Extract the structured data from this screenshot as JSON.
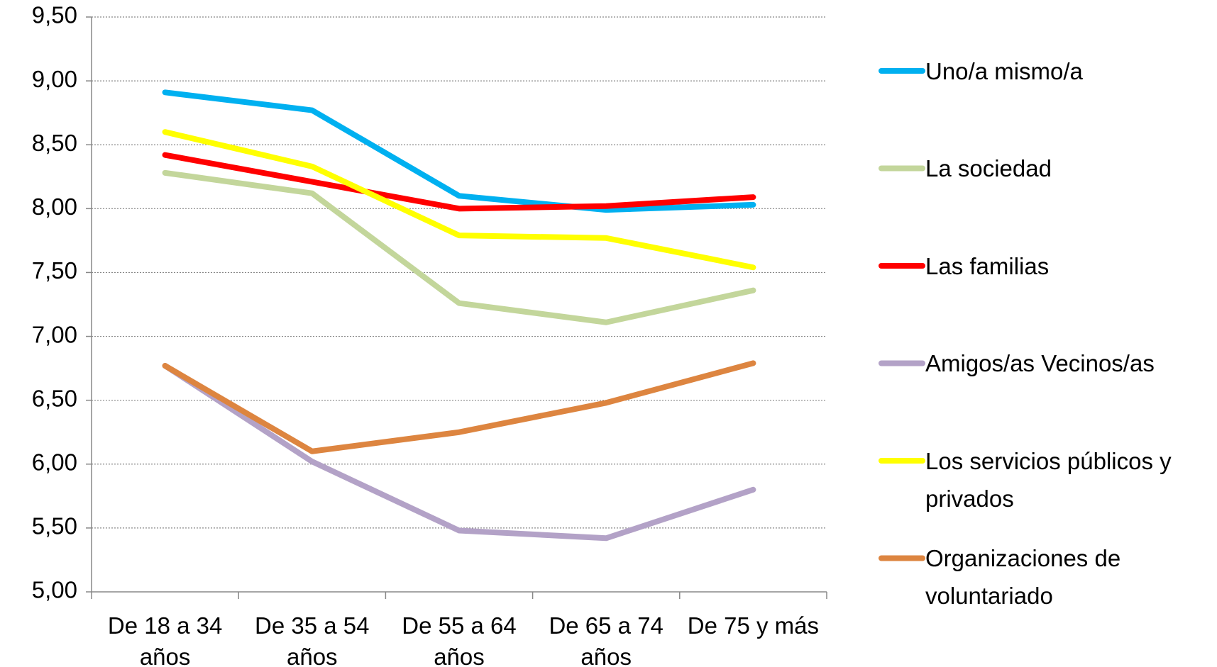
{
  "chart_data": {
    "type": "line",
    "categories": [
      "De 18 a 34 años",
      "De 35 a 54 años",
      "De 55 a 64 años",
      "De 65 a 74 años",
      "De 75 y más"
    ],
    "series": [
      {
        "name": "Uno/a mismo/a",
        "color": "#00b0f0",
        "values": [
          8.91,
          8.77,
          8.1,
          7.99,
          8.03
        ]
      },
      {
        "name": "La sociedad",
        "color": "#c3d69b",
        "values": [
          8.28,
          8.12,
          7.26,
          7.11,
          7.36
        ]
      },
      {
        "name": "Las familias",
        "color": "#ff0000",
        "values": [
          8.42,
          8.21,
          8.0,
          8.02,
          8.09
        ]
      },
      {
        "name": "Amigos/as Vecinos/as",
        "color": "#b3a2c7",
        "values": [
          6.77,
          6.02,
          5.48,
          5.42,
          5.8
        ]
      },
      {
        "name": "Los servicios públicos y privados",
        "color": "#ffff00",
        "values": [
          8.6,
          8.33,
          7.79,
          7.77,
          7.54
        ]
      },
      {
        "name": "Organizaciones de voluntariado",
        "color": "#dd8540",
        "values": [
          6.77,
          6.1,
          6.25,
          6.48,
          6.79
        ]
      }
    ],
    "ylim": [
      5,
      9.5
    ],
    "yticks": [
      {
        "value": 5,
        "label": "5,00"
      },
      {
        "value": 5.5,
        "label": "5,50"
      },
      {
        "value": 6,
        "label": "6,00"
      },
      {
        "value": 6.5,
        "label": "6,50"
      },
      {
        "value": 7,
        "label": "7,00"
      },
      {
        "value": 7.5,
        "label": "7,50"
      },
      {
        "value": 8,
        "label": "8,00"
      },
      {
        "value": 8.5,
        "label": "8,50"
      },
      {
        "value": 9,
        "label": "9,00"
      },
      {
        "value": 9.5,
        "label": "9,50"
      }
    ],
    "grid": true,
    "legend": "right"
  }
}
